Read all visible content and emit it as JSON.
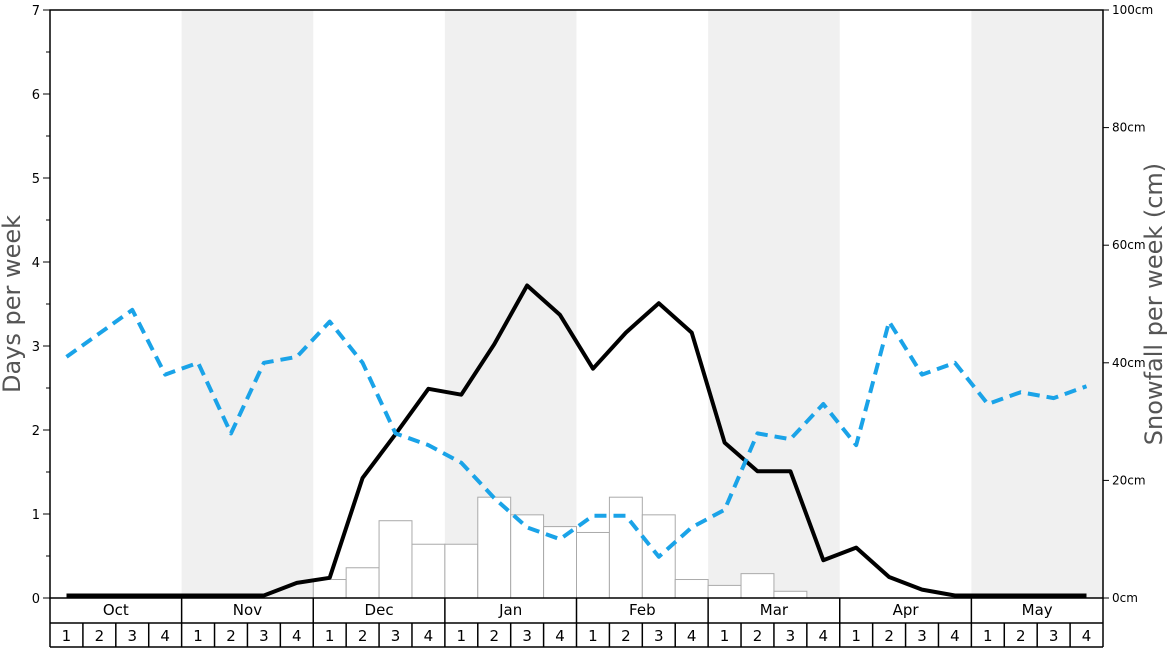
{
  "chart_data": {
    "type": "bar",
    "left_axis": {
      "title": "Days per week",
      "ylim": [
        0,
        7
      ],
      "ticks": [
        "0",
        "1",
        "2",
        "3",
        "4",
        "5",
        "6",
        "7"
      ]
    },
    "right_axis": {
      "title": "Snowfall per week (cm)",
      "ylim": [
        0,
        100
      ],
      "ticks": [
        "0cm",
        "20cm",
        "40cm",
        "60cm",
        "80cm",
        "100cm"
      ]
    },
    "months": [
      "Oct",
      "Nov",
      "Dec",
      "Jan",
      "Feb",
      "Mar",
      "Apr",
      "May"
    ],
    "week_labels": [
      "1",
      "2",
      "3",
      "4"
    ],
    "shaded_month_indices": [
      1,
      3,
      5,
      7
    ],
    "series": [
      {
        "kind": "bar",
        "axis": "left",
        "color": "#ffffff",
        "edge_color": "#aaaaaa",
        "values": [
          0,
          0,
          0,
          0,
          0,
          0,
          0,
          0,
          0.22,
          0.36,
          0.92,
          0.64,
          0.64,
          1.2,
          0.99,
          0.85,
          0.78,
          1.2,
          0.99,
          0.22,
          0.15,
          0.29,
          0.08,
          0,
          0,
          0,
          0,
          0,
          0,
          0,
          0,
          0
        ]
      },
      {
        "kind": "line",
        "axis": "left",
        "color": "#000000",
        "dash": "solid",
        "values": [
          0.03,
          0.03,
          0.03,
          0.03,
          0.03,
          0.03,
          0.03,
          0.18,
          0.24,
          1.43,
          1.95,
          2.49,
          2.42,
          3.02,
          3.72,
          3.37,
          2.73,
          3.16,
          3.51,
          3.16,
          1.85,
          1.51,
          1.51,
          0.45,
          0.6,
          0.25,
          0.1,
          0.03,
          0.03,
          0.03,
          0.03,
          0.03
        ]
      },
      {
        "kind": "line",
        "axis": "right",
        "color": "#1aa3e8",
        "dash": "dashed",
        "values": [
          41,
          45,
          49,
          38,
          40,
          28,
          40,
          41,
          47,
          40,
          28,
          26,
          23,
          17,
          12,
          10,
          14,
          14,
          7,
          12,
          15,
          28,
          27,
          33,
          26,
          47,
          38,
          40,
          33,
          35,
          34,
          36
        ]
      }
    ]
  }
}
